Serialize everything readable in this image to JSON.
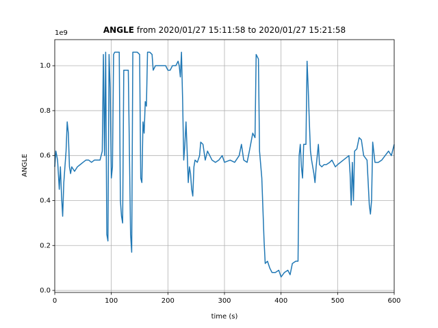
{
  "chart_data": {
    "type": "line",
    "title_parts": [
      "ANGLE",
      "from 2020/01/27 15:11:58 to 2020/01/27 15:21:58"
    ],
    "x_label": "time (s)",
    "y_label": "ANGLE",
    "y_offset_label": "1e9",
    "xlim": [
      0,
      600
    ],
    "ylim": [
      -0.009,
      1.116
    ],
    "xticks": [
      0,
      100,
      200,
      300,
      400,
      500,
      600
    ],
    "yticks": [
      {
        "value": 0,
        "label": "0.0"
      },
      0.2,
      0.4,
      0.6,
      0.8,
      {
        "value": 1,
        "label": "1.0"
      }
    ],
    "grid": true,
    "series": [
      {
        "color": "#1f77b4",
        "x": [
          0,
          2,
          5,
          8,
          10,
          12,
          14,
          16,
          18,
          20,
          22,
          24,
          26,
          28,
          30,
          35,
          40,
          45,
          50,
          55,
          60,
          65,
          70,
          80,
          84,
          86,
          88,
          90,
          92,
          94,
          96,
          98,
          100,
          102,
          104,
          106,
          110,
          114,
          116,
          118,
          120,
          122,
          126,
          130,
          134,
          136,
          138,
          142,
          146,
          150,
          152,
          154,
          156,
          158,
          160,
          162,
          164,
          168,
          172,
          174,
          178,
          184,
          190,
          196,
          200,
          204,
          208,
          214,
          218,
          220,
          222,
          224,
          226,
          228,
          230,
          232,
          234,
          236,
          238,
          240,
          242,
          244,
          246,
          248,
          252,
          256,
          258,
          262,
          266,
          270,
          274,
          278,
          284,
          290,
          296,
          300,
          310,
          318,
          326,
          330,
          334,
          340,
          344,
          350,
          354,
          356,
          360,
          362,
          366,
          370,
          372,
          376,
          380,
          384,
          390,
          396,
          400,
          406,
          412,
          416,
          420,
          426,
          430,
          432,
          434,
          436,
          438,
          440,
          444,
          446,
          448,
          450,
          452,
          454,
          456,
          458,
          460,
          462,
          466,
          468,
          472,
          476,
          480,
          486,
          490,
          496,
          500,
          510,
          520,
          522,
          524,
          526,
          528,
          530,
          534,
          538,
          542,
          546,
          552,
          556,
          558,
          560,
          562,
          566,
          572,
          578,
          584,
          590,
          595,
          600
        ],
        "values": [
          0.55,
          0.62,
          0.58,
          0.45,
          0.55,
          0.42,
          0.33,
          0.48,
          0.55,
          0.62,
          0.75,
          0.7,
          0.55,
          0.52,
          0.55,
          0.53,
          0.55,
          0.56,
          0.57,
          0.58,
          0.58,
          0.57,
          0.58,
          0.58,
          0.62,
          1.05,
          0.6,
          1.06,
          0.25,
          0.22,
          1.05,
          0.9,
          0.5,
          0.55,
          1.05,
          1.06,
          1.06,
          1.06,
          0.4,
          0.33,
          0.3,
          0.98,
          0.98,
          0.98,
          0.25,
          0.17,
          1.06,
          1.06,
          1.06,
          1.05,
          0.5,
          0.48,
          0.75,
          0.7,
          0.84,
          0.82,
          1.06,
          1.06,
          1.05,
          0.98,
          1.0,
          1.0,
          1.0,
          1.0,
          0.98,
          0.98,
          1.0,
          1.0,
          1.02,
          1.0,
          0.95,
          1.06,
          0.85,
          0.58,
          0.65,
          0.75,
          0.62,
          0.48,
          0.55,
          0.52,
          0.45,
          0.42,
          0.55,
          0.58,
          0.57,
          0.6,
          0.66,
          0.65,
          0.58,
          0.62,
          0.6,
          0.58,
          0.57,
          0.58,
          0.6,
          0.57,
          0.58,
          0.57,
          0.6,
          0.65,
          0.58,
          0.57,
          0.62,
          0.7,
          0.68,
          1.05,
          1.03,
          0.62,
          0.5,
          0.22,
          0.12,
          0.13,
          0.1,
          0.08,
          0.08,
          0.09,
          0.06,
          0.08,
          0.09,
          0.07,
          0.12,
          0.13,
          0.13,
          0.6,
          0.65,
          0.55,
          0.5,
          0.65,
          0.65,
          1.02,
          0.9,
          0.75,
          0.62,
          0.58,
          0.55,
          0.52,
          0.48,
          0.55,
          0.65,
          0.56,
          0.55,
          0.56,
          0.56,
          0.57,
          0.58,
          0.55,
          0.56,
          0.58,
          0.6,
          0.52,
          0.38,
          0.57,
          0.4,
          0.62,
          0.63,
          0.68,
          0.67,
          0.6,
          0.58,
          0.38,
          0.34,
          0.4,
          0.66,
          0.57,
          0.57,
          0.58,
          0.6,
          0.62,
          0.6,
          0.65
        ]
      }
    ]
  }
}
